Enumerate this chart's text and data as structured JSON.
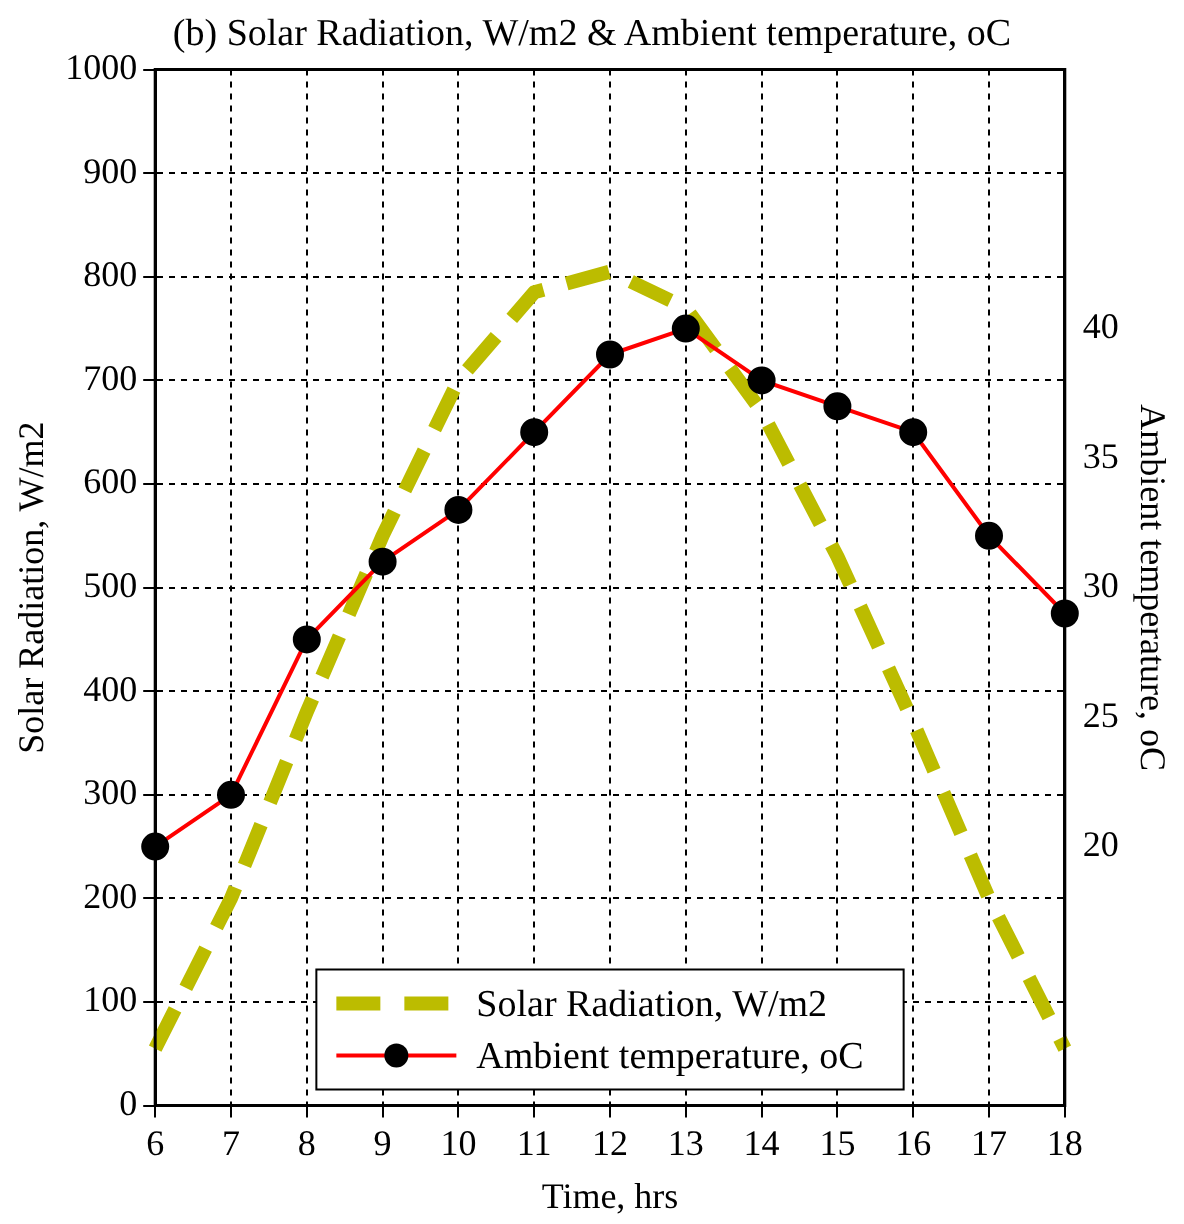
{
  "chart_data": {
    "type": "line",
    "title": "(b) Solar Radiation, W/m2 & Ambient temperature, oC",
    "xlabel": "Time, hrs",
    "ylabel": "Solar Radiation, W/m2",
    "y2label": "Ambient temperature, oC",
    "x": [
      6,
      7,
      8,
      9,
      10,
      11,
      12,
      13,
      14,
      15,
      16,
      17,
      18
    ],
    "series": [
      {
        "name": "Solar Radiation, W/m2",
        "color": "#bcbc00",
        "line_style": "dashed",
        "marker": "none",
        "values": [
          55,
          200,
          380,
          550,
          700,
          785,
          805,
          770,
          670,
          530,
          370,
          200,
          55
        ]
      },
      {
        "name": "Ambient temperature, oC",
        "color": "#ff0000",
        "axis": "y2",
        "marker": "circle",
        "values": [
          20,
          22,
          28,
          31,
          33,
          36,
          39,
          40,
          38,
          37,
          36,
          32,
          29
        ]
      }
    ],
    "xlim": [
      6,
      18
    ],
    "xticks": [
      6,
      7,
      8,
      9,
      10,
      11,
      12,
      13,
      14,
      15,
      16,
      17,
      18
    ],
    "ylim": [
      0,
      1000
    ],
    "yticks": [
      0,
      100,
      200,
      300,
      400,
      500,
      600,
      700,
      800,
      900,
      1000
    ],
    "y2lim": [
      10,
      50
    ],
    "y2ticks": [
      20,
      25,
      30,
      35,
      40
    ],
    "grid": true,
    "legend": "bottom"
  }
}
